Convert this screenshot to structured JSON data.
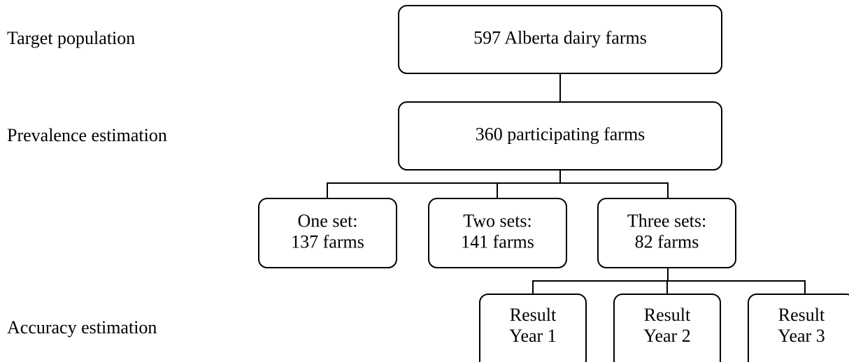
{
  "stages": [
    "Target population",
    "Prevalence estimation",
    "Accuracy estimation"
  ],
  "nodes": [
    {
      "lines": [
        "597 Alberta dairy farms"
      ]
    },
    {
      "lines": [
        "360 participating farms"
      ]
    },
    {
      "lines": [
        "One set:",
        "137 farms"
      ]
    },
    {
      "lines": [
        "Two sets:",
        "141 farms"
      ]
    },
    {
      "lines": [
        "Three sets:",
        "82 farms"
      ]
    },
    {
      "lines": [
        "Result",
        "Year 1"
      ]
    },
    {
      "lines": [
        "Result",
        "Year 2"
      ]
    },
    {
      "lines": [
        "Result",
        "Year 3"
      ]
    }
  ]
}
